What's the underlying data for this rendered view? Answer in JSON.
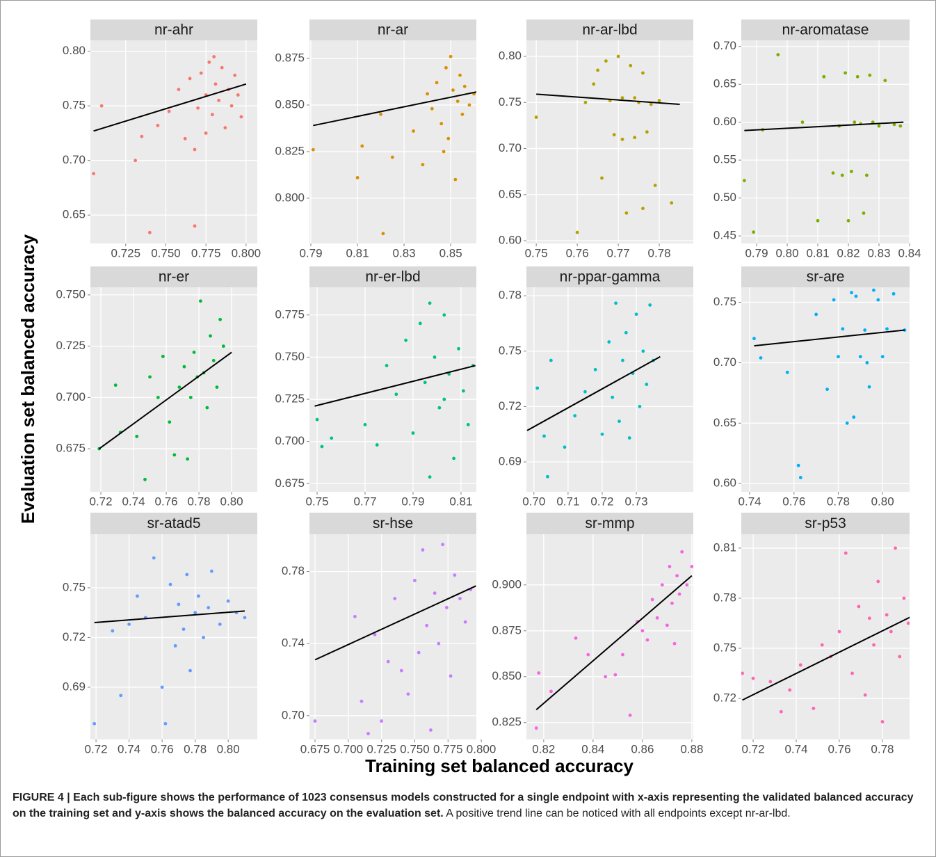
{
  "y_label": "Evaluation set balanced accuracy",
  "x_label": "Training set balanced accuracy",
  "caption": {
    "bold": "FIGURE 4 | Each sub-figure shows the performance of 1023 consensus models constructed for a single endpoint with x-axis representing the validated balanced accuracy on the training set and y-axis shows the balanced accuracy on the evaluation set.",
    "text": "A positive trend line can be noticed with all endpoints except nr-ar-lbd."
  },
  "chart_data": [
    {
      "type": "scatter",
      "title": "nr-ahr",
      "color": "#f8766d",
      "grid": true,
      "xlim": [
        0.703,
        0.807
      ],
      "ylim": [
        0.624,
        0.81
      ],
      "xticks": [
        0.725,
        {
          "value": 0.75,
          "label": "0.750"
        },
        0.775,
        {
          "value": 0.8,
          "label": "0.800"
        }
      ],
      "yticks": [
        0.65,
        {
          "value": 0.7,
          "label": "0.70"
        },
        0.75,
        {
          "value": 0.8,
          "label": "0.80"
        }
      ],
      "trend": {
        "x": [
          0.705,
          0.8
        ],
        "y": [
          0.727,
          0.77
        ]
      },
      "x": [
        0.705,
        0.71,
        0.731,
        0.735,
        0.74,
        0.745,
        0.752,
        0.758,
        0.762,
        0.765,
        0.768,
        0.77,
        0.772,
        0.775,
        0.777,
        0.779,
        0.781,
        0.783,
        0.785,
        0.787,
        0.789,
        0.791,
        0.793,
        0.795,
        0.797,
        0.768,
        0.78,
        0.775
      ],
      "y": [
        0.688,
        0.75,
        0.7,
        0.722,
        0.634,
        0.732,
        0.745,
        0.765,
        0.72,
        0.775,
        0.64,
        0.748,
        0.78,
        0.76,
        0.79,
        0.742,
        0.77,
        0.755,
        0.785,
        0.73,
        0.765,
        0.75,
        0.778,
        0.76,
        0.74,
        0.71,
        0.795,
        0.725
      ]
    },
    {
      "type": "scatter",
      "title": "nr-ar",
      "color": "#d89000",
      "grid": true,
      "xlim": [
        0.7894,
        0.861
      ],
      "ylim": [
        0.7757,
        0.8847
      ],
      "xticks": [
        0.79,
        0.81,
        0.83,
        0.85
      ],
      "yticks": [
        {
          "value": 0.8,
          "label": "0.800"
        },
        0.825,
        {
          "value": 0.85,
          "label": "0.850"
        },
        0.875
      ],
      "trend": {
        "x": [
          0.791,
          0.861
        ],
        "y": [
          0.839,
          0.857
        ]
      },
      "x": [
        0.791,
        0.81,
        0.812,
        0.82,
        0.821,
        0.825,
        0.834,
        0.838,
        0.84,
        0.842,
        0.844,
        0.846,
        0.848,
        0.849,
        0.85,
        0.851,
        0.852,
        0.853,
        0.854,
        0.855,
        0.856,
        0.858,
        0.86,
        0.847
      ],
      "y": [
        0.826,
        0.811,
        0.828,
        0.845,
        0.781,
        0.822,
        0.836,
        0.818,
        0.856,
        0.848,
        0.862,
        0.84,
        0.87,
        0.832,
        0.876,
        0.858,
        0.81,
        0.852,
        0.866,
        0.845,
        0.86,
        0.85,
        0.856,
        0.825
      ]
    },
    {
      "type": "scatter",
      "title": "nr-ar-lbd",
      "color": "#b79f00",
      "grid": true,
      "xlim": [
        0.7476,
        0.7883
      ],
      "ylim": [
        0.597,
        0.8174
      ],
      "xticks": [
        0.75,
        0.76,
        0.77,
        0.78
      ],
      "yticks": [
        {
          "value": 0.6,
          "label": "0.60"
        },
        0.65,
        {
          "value": 0.7,
          "label": "0.70"
        },
        0.75,
        {
          "value": 0.8,
          "label": "0.80"
        }
      ],
      "trend": {
        "x": [
          0.75,
          0.785
        ],
        "y": [
          0.759,
          0.748
        ]
      },
      "x": [
        0.75,
        0.76,
        0.762,
        0.765,
        0.766,
        0.768,
        0.769,
        0.77,
        0.771,
        0.772,
        0.773,
        0.774,
        0.775,
        0.776,
        0.777,
        0.778,
        0.779,
        0.78,
        0.767,
        0.771,
        0.774,
        0.764,
        0.776,
        0.783
      ],
      "y": [
        0.734,
        0.609,
        0.75,
        0.785,
        0.668,
        0.752,
        0.715,
        0.8,
        0.755,
        0.63,
        0.79,
        0.712,
        0.75,
        0.782,
        0.718,
        0.748,
        0.66,
        0.752,
        0.795,
        0.71,
        0.755,
        0.77,
        0.635,
        0.641
      ]
    },
    {
      "type": "scatter",
      "title": "nr-aromatase",
      "color": "#7cae00",
      "grid": true,
      "xlim": [
        0.785,
        0.84
      ],
      "ylim": [
        0.44,
        0.708
      ],
      "xticks": [
        0.79,
        {
          "value": 0.8,
          "label": "0.80"
        },
        0.81,
        0.82,
        0.83,
        0.84
      ],
      "yticks": [
        0.45,
        {
          "value": 0.5,
          "label": "0.50"
        },
        0.55,
        {
          "value": 0.6,
          "label": "0.60"
        },
        0.65,
        {
          "value": 0.7,
          "label": "0.70"
        }
      ],
      "trend": {
        "x": [
          0.786,
          0.838
        ],
        "y": [
          0.589,
          0.6
        ]
      },
      "x": [
        0.786,
        0.789,
        0.792,
        0.797,
        0.805,
        0.81,
        0.812,
        0.815,
        0.817,
        0.819,
        0.82,
        0.821,
        0.822,
        0.823,
        0.824,
        0.825,
        0.826,
        0.827,
        0.828,
        0.83,
        0.832,
        0.835,
        0.837,
        0.818
      ],
      "y": [
        0.523,
        0.455,
        0.59,
        0.689,
        0.6,
        0.47,
        0.66,
        0.533,
        0.595,
        0.665,
        0.47,
        0.535,
        0.6,
        0.66,
        0.598,
        0.48,
        0.53,
        0.662,
        0.6,
        0.595,
        0.655,
        0.597,
        0.595,
        0.53
      ]
    },
    {
      "type": "scatter",
      "title": "nr-er",
      "color": "#00ba38",
      "grid": true,
      "xlim": [
        0.7136,
        0.8157
      ],
      "ylim": [
        0.654,
        0.7537
      ],
      "xticks": [
        0.72,
        0.74,
        0.76,
        0.78,
        {
          "value": 0.8,
          "label": "0.80"
        }
      ],
      "yticks": [
        0.675,
        {
          "value": 0.7,
          "label": "0.700"
        },
        0.725,
        {
          "value": 0.75,
          "label": "0.750"
        }
      ],
      "trend": {
        "x": [
          0.719,
          0.8
        ],
        "y": [
          0.675,
          0.722
        ]
      },
      "x": [
        0.719,
        0.729,
        0.732,
        0.742,
        0.747,
        0.75,
        0.755,
        0.758,
        0.762,
        0.765,
        0.768,
        0.771,
        0.773,
        0.775,
        0.777,
        0.779,
        0.781,
        0.783,
        0.785,
        0.787,
        0.789,
        0.791,
        0.793,
        0.795
      ],
      "y": [
        0.675,
        0.706,
        0.683,
        0.681,
        0.66,
        0.71,
        0.7,
        0.72,
        0.688,
        0.672,
        0.705,
        0.715,
        0.67,
        0.7,
        0.722,
        0.71,
        0.747,
        0.712,
        0.695,
        0.73,
        0.718,
        0.705,
        0.738,
        0.725
      ]
    },
    {
      "type": "scatter",
      "title": "nr-er-lbd",
      "color": "#00c08b",
      "grid": true,
      "xlim": [
        0.7468,
        0.8164
      ],
      "ylim": [
        0.6702,
        0.7914
      ],
      "xticks": [
        0.75,
        0.77,
        0.79,
        0.81
      ],
      "yticks": [
        0.675,
        {
          "value": 0.7,
          "label": "0.700"
        },
        0.725,
        {
          "value": 0.75,
          "label": "0.750"
        },
        0.775
      ],
      "trend": {
        "x": [
          0.749,
          0.816
        ],
        "y": [
          0.721,
          0.745
        ]
      },
      "x": [
        0.75,
        0.752,
        0.756,
        0.77,
        0.775,
        0.779,
        0.783,
        0.787,
        0.79,
        0.793,
        0.795,
        0.797,
        0.799,
        0.801,
        0.803,
        0.805,
        0.807,
        0.809,
        0.811,
        0.813,
        0.815,
        0.797,
        0.803,
        0.809
      ],
      "y": [
        0.713,
        0.697,
        0.702,
        0.71,
        0.698,
        0.745,
        0.728,
        0.76,
        0.705,
        0.77,
        0.735,
        0.679,
        0.75,
        0.72,
        0.775,
        0.74,
        0.69,
        0.755,
        0.73,
        0.71,
        0.745,
        0.782,
        0.725,
        0.794
      ]
    },
    {
      "type": "scatter",
      "title": "nr-ppar-gamma",
      "color": "#00bfc4",
      "grid": true,
      "xlim": [
        0.6978,
        0.7467
      ],
      "ylim": [
        0.6738,
        0.7846
      ],
      "xticks": [
        {
          "value": 0.7,
          "label": "0.70"
        },
        0.71,
        0.72,
        0.73
      ],
      "yticks": [
        0.69,
        0.72,
        0.75,
        0.78
      ],
      "trend": {
        "x": [
          0.698,
          0.737
        ],
        "y": [
          0.707,
          0.747
        ]
      },
      "x": [
        0.698,
        0.701,
        0.703,
        0.704,
        0.705,
        0.709,
        0.712,
        0.715,
        0.718,
        0.72,
        0.722,
        0.723,
        0.724,
        0.725,
        0.726,
        0.727,
        0.728,
        0.729,
        0.73,
        0.731,
        0.732,
        0.733,
        0.734,
        0.735
      ],
      "y": [
        0.671,
        0.73,
        0.704,
        0.682,
        0.745,
        0.698,
        0.715,
        0.728,
        0.74,
        0.705,
        0.755,
        0.725,
        0.776,
        0.712,
        0.745,
        0.76,
        0.703,
        0.738,
        0.77,
        0.72,
        0.75,
        0.732,
        0.775,
        0.745
      ]
    },
    {
      "type": "scatter",
      "title": "sr-are",
      "color": "#00b0f6",
      "grid": true,
      "xlim": [
        0.7362,
        0.8122
      ],
      "ylim": [
        0.5932,
        0.7624
      ],
      "xticks": [
        0.74,
        0.76,
        0.78,
        {
          "value": 0.8,
          "label": "0.80"
        }
      ],
      "yticks": [
        {
          "value": 0.6,
          "label": "0.60"
        },
        0.65,
        {
          "value": 0.7,
          "label": "0.70"
        },
        0.75
      ],
      "trend": {
        "x": [
          0.742,
          0.81
        ],
        "y": [
          0.714,
          0.727
        ]
      },
      "x": [
        0.742,
        0.745,
        0.757,
        0.762,
        0.763,
        0.77,
        0.775,
        0.778,
        0.78,
        0.782,
        0.784,
        0.786,
        0.788,
        0.79,
        0.792,
        0.794,
        0.796,
        0.798,
        0.8,
        0.802,
        0.805,
        0.81,
        0.787,
        0.793
      ],
      "y": [
        0.72,
        0.704,
        0.692,
        0.615,
        0.605,
        0.74,
        0.678,
        0.752,
        0.705,
        0.728,
        0.65,
        0.758,
        0.755,
        0.705,
        0.727,
        0.68,
        0.76,
        0.752,
        0.705,
        0.728,
        0.757,
        0.727,
        0.655,
        0.7
      ]
    },
    {
      "type": "scatter",
      "title": "sr-atad5",
      "color": "#619cff",
      "grid": true,
      "xlim": [
        0.7166,
        0.8176
      ],
      "ylim": [
        0.6585,
        0.7823
      ],
      "xticks": [
        0.72,
        0.74,
        0.76,
        0.78,
        {
          "value": 0.8,
          "label": "0.80"
        }
      ],
      "yticks": [
        0.69,
        0.72,
        0.75
      ],
      "trend": {
        "x": [
          0.719,
          0.81
        ],
        "y": [
          0.729,
          0.736
        ]
      },
      "x": [
        0.719,
        0.73,
        0.735,
        0.74,
        0.745,
        0.75,
        0.755,
        0.76,
        0.762,
        0.765,
        0.768,
        0.77,
        0.773,
        0.775,
        0.777,
        0.78,
        0.782,
        0.785,
        0.788,
        0.79,
        0.795,
        0.8,
        0.805,
        0.81
      ],
      "y": [
        0.668,
        0.724,
        0.685,
        0.728,
        0.745,
        0.732,
        0.768,
        0.69,
        0.668,
        0.752,
        0.715,
        0.74,
        0.725,
        0.758,
        0.7,
        0.735,
        0.745,
        0.72,
        0.738,
        0.76,
        0.728,
        0.742,
        0.735,
        0.732
      ]
    },
    {
      "type": "scatter",
      "title": "sr-hse",
      "color": "#c77cff",
      "grid": true,
      "xlim": [
        0.6708,
        0.7963
      ],
      "ylim": [
        0.6868,
        0.8007
      ],
      "xticks": [
        0.675,
        {
          "value": 0.7,
          "label": "0.700"
        },
        0.725,
        {
          "value": 0.75,
          "label": "0.750"
        },
        0.775,
        {
          "value": 0.8,
          "label": "0.800"
        }
      ],
      "yticks": [
        {
          "value": 0.7,
          "label": "0.70"
        },
        0.74,
        0.78
      ],
      "trend": {
        "x": [
          0.675,
          0.796
        ],
        "y": [
          0.731,
          0.772
        ]
      },
      "x": [
        0.675,
        0.705,
        0.71,
        0.715,
        0.72,
        0.725,
        0.73,
        0.735,
        0.74,
        0.745,
        0.75,
        0.753,
        0.756,
        0.759,
        0.762,
        0.765,
        0.768,
        0.771,
        0.774,
        0.777,
        0.78,
        0.784,
        0.788,
        0.792
      ],
      "y": [
        0.697,
        0.755,
        0.708,
        0.69,
        0.745,
        0.697,
        0.73,
        0.765,
        0.725,
        0.712,
        0.775,
        0.735,
        0.792,
        0.75,
        0.692,
        0.768,
        0.74,
        0.795,
        0.76,
        0.722,
        0.778,
        0.765,
        0.752,
        0.77
      ]
    },
    {
      "type": "scatter",
      "title": "sr-mmp",
      "color": "#f564e3",
      "grid": true,
      "xlim": [
        0.813,
        0.8806
      ],
      "ylim": [
        0.8158,
        0.9276
      ],
      "xticks": [
        0.82,
        0.84,
        0.86,
        0.88
      ],
      "yticks": [
        0.825,
        {
          "value": 0.85,
          "label": "0.850"
        },
        0.875,
        {
          "value": 0.9,
          "label": "0.900"
        }
      ],
      "trend": {
        "x": [
          0.817,
          0.88
        ],
        "y": [
          0.832,
          0.905
        ]
      },
      "x": [
        0.817,
        0.818,
        0.823,
        0.833,
        0.838,
        0.845,
        0.849,
        0.852,
        0.855,
        0.858,
        0.86,
        0.862,
        0.864,
        0.866,
        0.868,
        0.87,
        0.871,
        0.872,
        0.873,
        0.874,
        0.875,
        0.876,
        0.878,
        0.88
      ],
      "y": [
        0.822,
        0.852,
        0.842,
        0.871,
        0.862,
        0.85,
        0.851,
        0.862,
        0.829,
        0.88,
        0.875,
        0.87,
        0.892,
        0.882,
        0.9,
        0.878,
        0.91,
        0.89,
        0.868,
        0.905,
        0.895,
        0.918,
        0.9,
        0.91
      ]
    },
    {
      "type": "scatter",
      "title": "sr-p53",
      "color": "#ff64b0",
      "grid": true,
      "xlim": [
        0.7145,
        0.7926
      ],
      "ylim": [
        0.6954,
        0.8183
      ],
      "xticks": [
        0.72,
        0.74,
        0.76,
        0.78
      ],
      "yticks": [
        0.72,
        0.75,
        0.78,
        0.81
      ],
      "trend": {
        "x": [
          0.715,
          0.795
        ],
        "y": [
          0.719,
          0.77
        ]
      },
      "x": [
        0.715,
        0.72,
        0.728,
        0.733,
        0.737,
        0.742,
        0.748,
        0.752,
        0.756,
        0.76,
        0.763,
        0.766,
        0.769,
        0.772,
        0.774,
        0.776,
        0.778,
        0.78,
        0.782,
        0.784,
        0.786,
        0.788,
        0.79,
        0.792
      ],
      "y": [
        0.735,
        0.732,
        0.73,
        0.712,
        0.725,
        0.74,
        0.714,
        0.752,
        0.745,
        0.76,
        0.807,
        0.735,
        0.775,
        0.722,
        0.768,
        0.752,
        0.79,
        0.706,
        0.77,
        0.76,
        0.81,
        0.745,
        0.78,
        0.765
      ]
    }
  ]
}
